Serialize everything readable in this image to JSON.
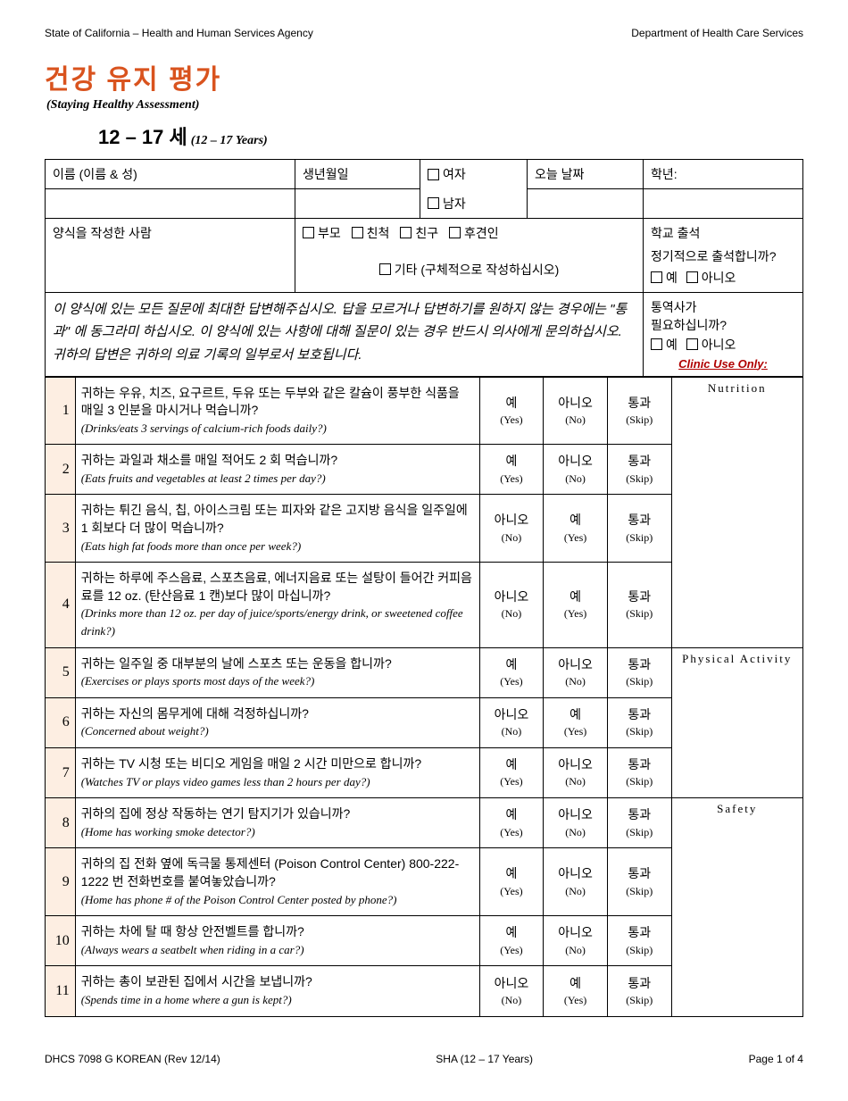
{
  "header": {
    "left": "State of California – Health and Human Services Agency",
    "right": "Department of Health Care Services"
  },
  "title_ko": "건강 유지 평가",
  "title_en": "(Staying Healthy Assessment)",
  "age_ko": "12 – 17 세",
  "age_en": "(12 – 17 Years)",
  "fields": {
    "name": "이름 (이름 & 성)",
    "dob": "생년월일",
    "female": "여자",
    "male": "남자",
    "today": "오늘 날짜",
    "grade": "학년:",
    "filledby": "양식을 작성한 사람",
    "parent": "부모",
    "relative": "친척",
    "friend": "친구",
    "guardian": "후견인",
    "other": "기타 (구체적으로 작성하십시오)",
    "attend_hdr": "학교 출석",
    "attend_q": "정기적으로 출석합니까?",
    "yes": "예",
    "no": "아니오",
    "interp1": "통역사가",
    "interp2": "필요하십니까?",
    "clinic": "Clinic Use Only:"
  },
  "instructions": "이 양식에 있는 모든 질문에 최대한 답변해주십시오. 답을 모르거나 답변하기를 원하지 않는 경우에는 \"통과\" 에 동그라미 하십시오. 이 양식에 있는 사항에 대해 질문이 있는 경우 반드시 의사에게 문의하십시오. 귀하의 답변은 귀하의 의료 기록의 일부로서 보호됩니다.",
  "answers": {
    "yes_ko": "예",
    "yes_en": "(Yes)",
    "no_ko": "아니오",
    "no_en": "(No)",
    "skip_ko": "통과",
    "skip_en": "(Skip)"
  },
  "categories": {
    "nutrition": "Nutrition",
    "physical": "Physical Activity",
    "safety": "Safety"
  },
  "questions": [
    {
      "n": "1",
      "ko": "귀하는 우유, 치즈, 요구르트, 두유 또는 두부와 같은 칼슘이 풍부한 식품을 매일 3 인분을 마시거나 먹습니까?",
      "en": "(Drinks/eats 3 servings of calcium-rich foods daily?)",
      "pos": "yes",
      "neg": "no"
    },
    {
      "n": "2",
      "ko": "귀하는 과일과 채소를 매일 적어도 2 회 먹습니까?",
      "en": "(Eats fruits and vegetables at least 2 times per day?)",
      "pos": "yes",
      "neg": "no"
    },
    {
      "n": "3",
      "ko": "귀하는 튀긴 음식, 칩, 아이스크림 또는 피자와 같은 고지방 음식을 일주일에 1 회보다 더 많이 먹습니까?",
      "en": "(Eats high fat foods more than once per week?)",
      "pos": "no",
      "neg": "yes"
    },
    {
      "n": "4",
      "ko": "귀하는 하루에 주스음료, 스포츠음료, 에너지음료 또는 설탕이 들어간 커피음료를 12 oz. (탄산음료 1 캔)보다 많이 마십니까?",
      "en": "(Drinks more than 12 oz. per day of juice/sports/energy drink, or sweetened coffee drink?)",
      "pos": "no",
      "neg": "yes"
    },
    {
      "n": "5",
      "ko": "귀하는 일주일 중 대부분의 날에 스포츠 또는 운동을 합니까?",
      "en": "(Exercises or plays sports most days of the week?)",
      "pos": "yes",
      "neg": "no"
    },
    {
      "n": "6",
      "ko": "귀하는 자신의 몸무게에 대해 걱정하십니까?",
      "en": "(Concerned about weight?)",
      "pos": "no",
      "neg": "yes"
    },
    {
      "n": "7",
      "ko": "귀하는 TV 시청 또는 비디오 게임을 매일 2 시간 미만으로 합니까?",
      "en": "(Watches TV or plays video games less than 2 hours per day?)",
      "pos": "yes",
      "neg": "no"
    },
    {
      "n": "8",
      "ko": "귀하의 집에 정상 작동하는 연기 탐지기가 있습니까?",
      "en": "(Home has working smoke detector?)",
      "pos": "yes",
      "neg": "no"
    },
    {
      "n": "9",
      "ko": "귀하의 집 전화 옆에 독극물 통제센터 (Poison Control Center) 800-222-1222 번 전화번호를 붙여놓았습니까?",
      "en": "(Home has phone # of the Poison Control Center posted by phone?)",
      "pos": "yes",
      "neg": "no"
    },
    {
      "n": "10",
      "ko": "귀하는 차에 탈 때 항상 안전벨트를 합니까?",
      "en": "(Always wears a seatbelt when riding in a car?)",
      "pos": "yes",
      "neg": "no"
    },
    {
      "n": "11",
      "ko": "귀하는 총이 보관된 집에서 시간을 보냅니까?",
      "en": "(Spends time in a home where a gun is kept?)",
      "pos": "no",
      "neg": "yes"
    }
  ],
  "footer": {
    "left": "DHCS 7098 G KOREAN (Rev 12/14)",
    "center": "SHA (12 – 17 Years)",
    "right": "Page 1 of 4"
  }
}
